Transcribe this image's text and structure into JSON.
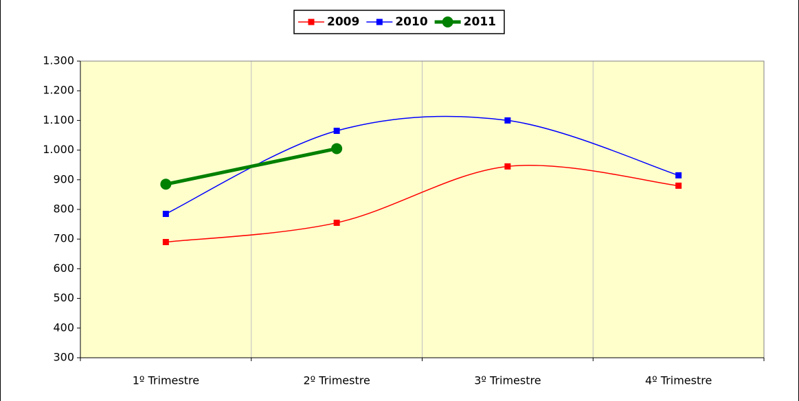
{
  "chart_data": {
    "type": "line",
    "categories": [
      "1º Trimestre",
      "2º Trimestre",
      "3º Trimestre",
      "4º Trimestre"
    ],
    "series": [
      {
        "name": "2009",
        "color": "#ff0000",
        "marker": "square",
        "line_width": 1.5,
        "values": [
          690,
          755,
          945,
          880
        ]
      },
      {
        "name": "2010",
        "color": "#0000ff",
        "marker": "square",
        "line_width": 1.5,
        "values": [
          785,
          1065,
          1100,
          915
        ]
      },
      {
        "name": "2011",
        "color": "#008000",
        "marker": "circle",
        "line_width": 5,
        "values": [
          885,
          1005,
          null,
          null
        ]
      }
    ],
    "ylim": [
      300,
      1300
    ],
    "yticks": [
      300,
      400,
      500,
      600,
      700,
      800,
      900,
      {
        "value": 1000,
        "label": "1.000"
      },
      {
        "value": 1100,
        "label": "1.100"
      },
      {
        "value": 1200,
        "label": "1.200"
      },
      {
        "value": 1300,
        "label": "1.300"
      }
    ],
    "smooth": true,
    "plot_background": "#ffffcc",
    "legend": "top"
  }
}
